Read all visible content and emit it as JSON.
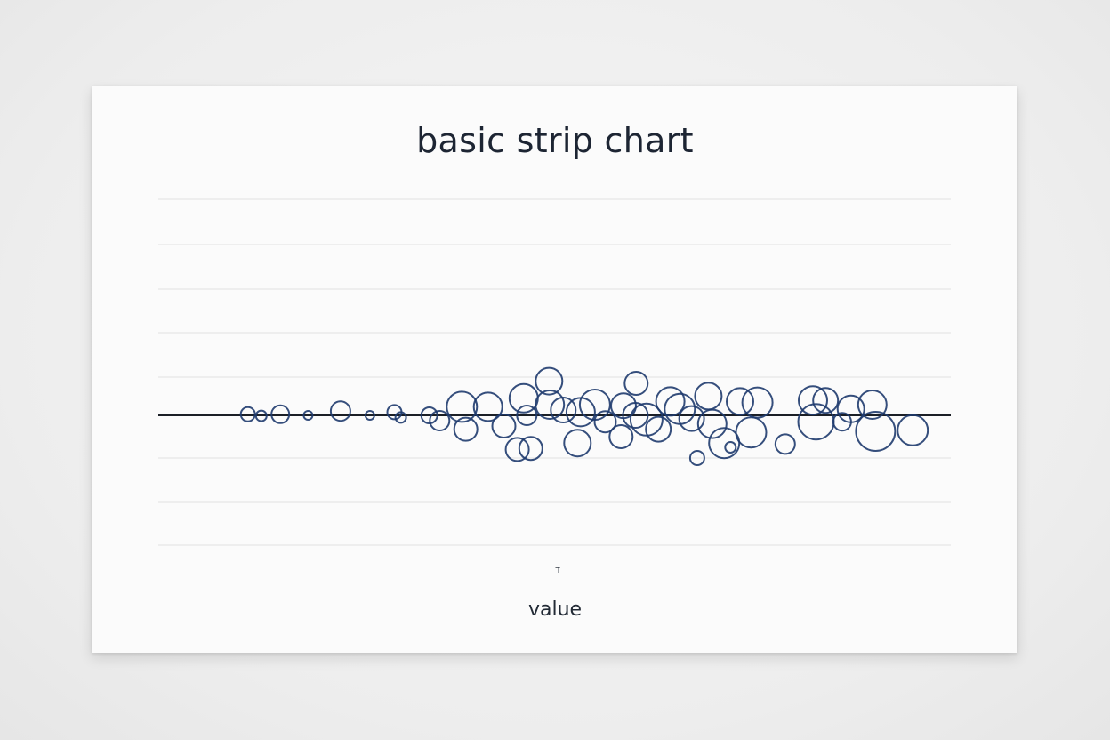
{
  "chart_data": {
    "type": "scatter",
    "variant": "strip",
    "title": "basic strip chart",
    "xlabel": "value",
    "x_tick_labels": [
      "ד"
    ],
    "grid": true,
    "marker": "hollow-circle",
    "series_color": "#1f3b6e",
    "baseline_color": "#1b1f26",
    "gridline_color": "#e2e2e2",
    "xlim": [
      0,
      100
    ],
    "points": [
      {
        "x": 11.3,
        "jitter": -0.1,
        "size": 8
      },
      {
        "x": 13.0,
        "jitter": 0.05,
        "size": 6
      },
      {
        "x": 15.4,
        "jitter": -0.1,
        "size": 10
      },
      {
        "x": 18.9,
        "jitter": 0.0,
        "size": 5
      },
      {
        "x": 23.0,
        "jitter": -0.4,
        "size": 11
      },
      {
        "x": 26.7,
        "jitter": 0.0,
        "size": 5
      },
      {
        "x": 29.8,
        "jitter": -0.3,
        "size": 8
      },
      {
        "x": 30.6,
        "jitter": 0.2,
        "size": 6
      },
      {
        "x": 34.2,
        "jitter": 0.0,
        "size": 9
      },
      {
        "x": 35.5,
        "jitter": 0.5,
        "size": 11
      },
      {
        "x": 38.3,
        "jitter": -0.8,
        "size": 17
      },
      {
        "x": 38.8,
        "jitter": 1.3,
        "size": 13
      },
      {
        "x": 41.6,
        "jitter": -0.8,
        "size": 16
      },
      {
        "x": 43.6,
        "jitter": 1.0,
        "size": 13
      },
      {
        "x": 45.3,
        "jitter": 3.2,
        "size": 13
      },
      {
        "x": 47.0,
        "jitter": 3.1,
        "size": 13
      },
      {
        "x": 46.1,
        "jitter": -1.6,
        "size": 16
      },
      {
        "x": 46.5,
        "jitter": 0.0,
        "size": 11
      },
      {
        "x": 49.3,
        "jitter": -3.2,
        "size": 15
      },
      {
        "x": 49.4,
        "jitter": -1.0,
        "size": 16
      },
      {
        "x": 51.1,
        "jitter": -0.5,
        "size": 14
      },
      {
        "x": 52.9,
        "jitter": 2.6,
        "size": 15
      },
      {
        "x": 53.3,
        "jitter": -0.3,
        "size": 16
      },
      {
        "x": 55.1,
        "jitter": -1.0,
        "size": 17
      },
      {
        "x": 56.4,
        "jitter": 0.6,
        "size": 12
      },
      {
        "x": 58.4,
        "jitter": 2.0,
        "size": 13
      },
      {
        "x": 58.7,
        "jitter": -0.9,
        "size": 14
      },
      {
        "x": 60.3,
        "jitter": -3.0,
        "size": 13
      },
      {
        "x": 60.2,
        "jitter": 0.0,
        "size": 14
      },
      {
        "x": 61.6,
        "jitter": 0.4,
        "size": 18
      },
      {
        "x": 63.1,
        "jitter": 1.3,
        "size": 14
      },
      {
        "x": 64.6,
        "jitter": -1.3,
        "size": 16
      },
      {
        "x": 65.8,
        "jitter": -0.6,
        "size": 17
      },
      {
        "x": 67.3,
        "jitter": 0.3,
        "size": 14
      },
      {
        "x": 68.0,
        "jitter": 4.0,
        "size": 8
      },
      {
        "x": 69.4,
        "jitter": -1.8,
        "size": 15
      },
      {
        "x": 69.9,
        "jitter": 0.8,
        "size": 16
      },
      {
        "x": 71.4,
        "jitter": 2.6,
        "size": 17
      },
      {
        "x": 72.2,
        "jitter": 3.0,
        "size": 6
      },
      {
        "x": 73.4,
        "jitter": -1.3,
        "size": 15
      },
      {
        "x": 75.6,
        "jitter": -1.2,
        "size": 17
      },
      {
        "x": 74.8,
        "jitter": 1.6,
        "size": 17
      },
      {
        "x": 79.1,
        "jitter": 2.7,
        "size": 11
      },
      {
        "x": 82.6,
        "jitter": -1.4,
        "size": 16
      },
      {
        "x": 83.0,
        "jitter": 0.6,
        "size": 20
      },
      {
        "x": 84.2,
        "jitter": -1.4,
        "size": 14
      },
      {
        "x": 86.3,
        "jitter": 0.6,
        "size": 10
      },
      {
        "x": 87.4,
        "jitter": -0.6,
        "size": 15
      },
      {
        "x": 90.5,
        "jitter": 1.5,
        "size": 22
      },
      {
        "x": 90.1,
        "jitter": -1.0,
        "size": 16
      },
      {
        "x": 95.2,
        "jitter": 1.4,
        "size": 17
      }
    ]
  }
}
